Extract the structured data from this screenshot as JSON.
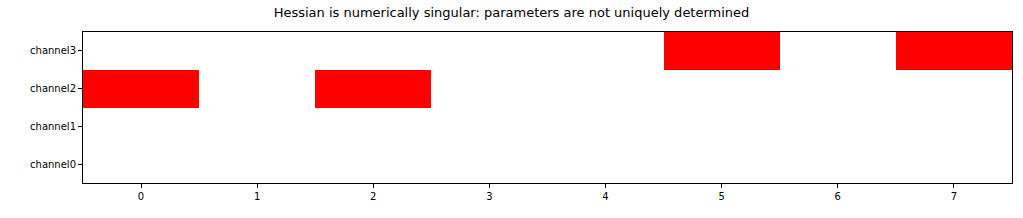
{
  "chart_data": {
    "type": "heatmap",
    "title": "Hessian is numerically singular: parameters are not uniquely determined",
    "x": [
      0,
      1,
      2,
      3,
      4,
      5,
      6,
      7
    ],
    "categories": [
      "channel0",
      "channel1",
      "channel2",
      "channel3"
    ],
    "cells": [
      [
        0,
        0,
        0,
        0,
        0,
        0,
        0,
        0
      ],
      [
        0,
        0,
        0,
        0,
        0,
        0,
        0,
        0
      ],
      [
        1,
        0,
        1,
        0,
        0,
        0,
        0,
        0
      ],
      [
        0,
        0,
        0,
        0,
        0,
        1,
        0,
        1
      ]
    ],
    "color": "#ff0000",
    "xlim": [
      -0.5,
      7.5
    ],
    "xticks": [
      0,
      1,
      2,
      3,
      4,
      5,
      6,
      7
    ]
  }
}
